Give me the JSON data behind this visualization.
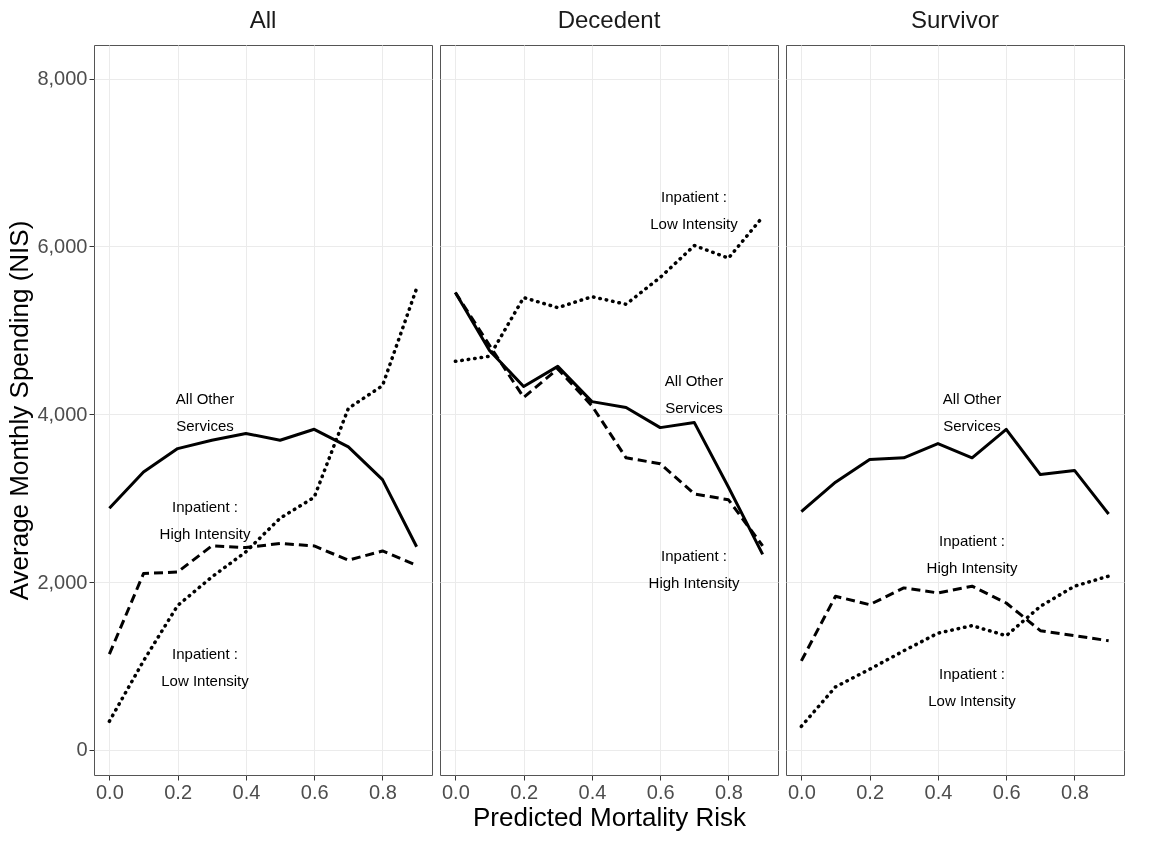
{
  "chart_data": [
    {
      "type": "line",
      "title": "All",
      "ylabel": "Average Monthly Spending (NIS)",
      "x": [
        0,
        0.1,
        0.2,
        0.3,
        0.4,
        0.5,
        0.6,
        0.7,
        0.8,
        0.9
      ],
      "xlim": [
        -0.045,
        0.945
      ],
      "xticks": [
        {
          "value": 0,
          "label": "0.0"
        },
        {
          "value": 0.2,
          "label": "0.2"
        },
        {
          "value": 0.4,
          "label": "0.4"
        },
        {
          "value": 0.6,
          "label": "0.6"
        },
        {
          "value": 0.8,
          "label": "0.8"
        }
      ],
      "ylim": [
        -300,
        8400
      ],
      "yticks": [
        0,
        {
          "value": 2000,
          "label": "2,000"
        },
        {
          "value": 4000,
          "label": "4,000"
        },
        {
          "value": 6000,
          "label": "6,000"
        },
        {
          "value": 8000,
          "label": "8,000"
        }
      ],
      "grid": true,
      "series": [
        {
          "color": "#000000",
          "line_style": "solid",
          "values": [
            2880,
            3310,
            3590,
            3690,
            3770,
            3690,
            3820,
            3610,
            3220,
            2420
          ]
        },
        {
          "color": "#000000",
          "line_style": "dashed",
          "values": [
            1140,
            2100,
            2120,
            2430,
            2410,
            2460,
            2430,
            2260,
            2370,
            2200
          ]
        },
        {
          "color": "#000000",
          "line_style": "dotted",
          "values": [
            340,
            1060,
            1720,
            2060,
            2360,
            2760,
            3010,
            4070,
            4340,
            5500
          ]
        }
      ],
      "annotations": [
        "All Other\nServices",
        "Inpatient :\nHigh Intensity",
        "Inpatient :\nLow Intensity"
      ]
    },
    {
      "type": "line",
      "title": "Decedent",
      "xlabel": "Predicted Mortality Risk",
      "x": [
        0,
        0.1,
        0.2,
        0.3,
        0.4,
        0.5,
        0.6,
        0.7,
        0.8,
        0.9
      ],
      "xlim": [
        -0.045,
        0.945
      ],
      "xticks": [
        {
          "value": 0,
          "label": "0.0"
        },
        {
          "value": 0.2,
          "label": "0.2"
        },
        {
          "value": 0.4,
          "label": "0.4"
        },
        {
          "value": 0.6,
          "label": "0.6"
        },
        {
          "value": 0.8,
          "label": "0.8"
        }
      ],
      "ylim": [
        -300,
        8400
      ],
      "yticks": [
        {
          "value": 0,
          "label": null
        },
        {
          "value": 2000,
          "label": null
        },
        {
          "value": 4000,
          "label": null
        },
        {
          "value": 6000,
          "label": null
        },
        {
          "value": 8000,
          "label": null
        }
      ],
      "grid": true,
      "tick_labels": "x",
      "series": [
        {
          "color": "#000000",
          "line_style": "solid",
          "values": [
            5450,
            4760,
            4330,
            4570,
            4150,
            4080,
            3840,
            3900,
            3130,
            2330
          ]
        },
        {
          "color": "#000000",
          "line_style": "dashed",
          "values": [
            5450,
            4820,
            4200,
            4540,
            4100,
            3480,
            3410,
            3050,
            2980,
            2430
          ]
        },
        {
          "color": "#000000",
          "line_style": "dotted",
          "values": [
            4630,
            4690,
            5390,
            5270,
            5400,
            5310,
            5630,
            6010,
            5860,
            6350
          ]
        }
      ],
      "annotations": [
        "Inpatient :\nLow Intensity",
        "All Other\nServices",
        "Inpatient :\nHigh Intensity"
      ]
    },
    {
      "type": "line",
      "title": "Survivor",
      "x": [
        0,
        0.1,
        0.2,
        0.3,
        0.4,
        0.5,
        0.6,
        0.7,
        0.8,
        0.9
      ],
      "xlim": [
        -0.045,
        0.945
      ],
      "xticks": [
        {
          "value": 0,
          "label": "0.0"
        },
        {
          "value": 0.2,
          "label": "0.2"
        },
        {
          "value": 0.4,
          "label": "0.4"
        },
        {
          "value": 0.6,
          "label": "0.6"
        },
        {
          "value": 0.8,
          "label": "0.8"
        }
      ],
      "ylim": [
        -300,
        8400
      ],
      "yticks": [
        {
          "value": 0,
          "label": null
        },
        {
          "value": 2000,
          "label": null
        },
        {
          "value": 4000,
          "label": null
        },
        {
          "value": 6000,
          "label": null
        },
        {
          "value": 8000,
          "label": null
        }
      ],
      "grid": true,
      "tick_labels": "x",
      "series": [
        {
          "color": "#000000",
          "line_style": "solid",
          "values": [
            2840,
            3190,
            3460,
            3480,
            3650,
            3480,
            3820,
            3280,
            3330,
            2810
          ]
        },
        {
          "color": "#000000",
          "line_style": "dashed",
          "values": [
            1060,
            1830,
            1730,
            1930,
            1870,
            1950,
            1750,
            1420,
            1360,
            1300
          ]
        },
        {
          "color": "#000000",
          "line_style": "dotted",
          "values": [
            280,
            750,
            960,
            1180,
            1390,
            1480,
            1360,
            1710,
            1950,
            2070
          ]
        }
      ],
      "annotations": [
        "All Other\nServices",
        "Inpatient :\nHigh Intensity",
        "Inpatient :\nLow Intensity"
      ]
    }
  ]
}
